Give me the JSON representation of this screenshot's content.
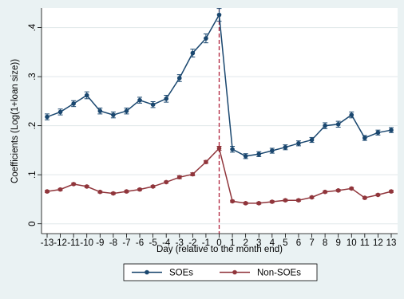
{
  "chart_data": {
    "type": "line",
    "title": "",
    "xlabel": "Day (relative to the month end)",
    "ylabel": "Coefficients (Log(1+loan size))",
    "x": [
      -13,
      -12,
      -11,
      -10,
      -9,
      -8,
      -7,
      -6,
      -5,
      -4,
      -3,
      -2,
      -1,
      0,
      1,
      2,
      3,
      4,
      5,
      6,
      7,
      8,
      9,
      10,
      11,
      12,
      13
    ],
    "x_tick_labels": [
      "-13",
      "-12",
      "-11",
      "-10",
      "-9",
      "-8",
      "-7",
      "-6",
      "-5",
      "-4",
      "-3",
      "-2",
      "-1",
      "0",
      "1",
      "2",
      "3",
      "4",
      "5",
      "6",
      "7",
      "8",
      "9",
      "10",
      "11",
      "12",
      "13"
    ],
    "xlim": [
      -13,
      13
    ],
    "ylim": [
      -0.02,
      0.44
    ],
    "y_ticks": [
      0,
      0.1,
      0.2,
      0.3,
      0.4
    ],
    "y_tick_labels": [
      "0",
      ".1",
      ".2",
      ".3",
      ".4"
    ],
    "vline": {
      "x": 0,
      "color": "#b0203a",
      "style": "dashed"
    },
    "grid": true,
    "legend_position": "bottom",
    "series": [
      {
        "name": "SOEs",
        "color": "#1a476f",
        "values": [
          0.218,
          0.228,
          0.245,
          0.262,
          0.23,
          0.222,
          0.23,
          0.252,
          0.243,
          0.255,
          0.297,
          0.348,
          0.378,
          0.426,
          0.152,
          0.138,
          0.142,
          0.149,
          0.156,
          0.164,
          0.171,
          0.2,
          0.203,
          0.222,
          0.175,
          0.186,
          0.191
        ],
        "ci_half": [
          0.006,
          0.006,
          0.006,
          0.007,
          0.006,
          0.006,
          0.006,
          0.006,
          0.006,
          0.007,
          0.007,
          0.008,
          0.009,
          0.013,
          0.006,
          0.005,
          0.005,
          0.005,
          0.005,
          0.005,
          0.005,
          0.006,
          0.006,
          0.006,
          0.005,
          0.005,
          0.005
        ]
      },
      {
        "name": "Non-SOEs",
        "color": "#90353b",
        "values": [
          0.066,
          0.07,
          0.081,
          0.076,
          0.065,
          0.062,
          0.066,
          0.07,
          0.076,
          0.085,
          0.095,
          0.101,
          0.126,
          0.154,
          0.046,
          0.042,
          0.042,
          0.045,
          0.048,
          0.048,
          0.054,
          0.065,
          0.068,
          0.072,
          0.053,
          0.059,
          0.066
        ],
        "ci_half": [
          0.002,
          0.002,
          0.002,
          0.002,
          0.002,
          0.002,
          0.002,
          0.002,
          0.002,
          0.002,
          0.003,
          0.003,
          0.003,
          0.004,
          0.002,
          0.002,
          0.002,
          0.002,
          0.002,
          0.002,
          0.002,
          0.002,
          0.002,
          0.002,
          0.002,
          0.002,
          0.002
        ]
      }
    ]
  }
}
